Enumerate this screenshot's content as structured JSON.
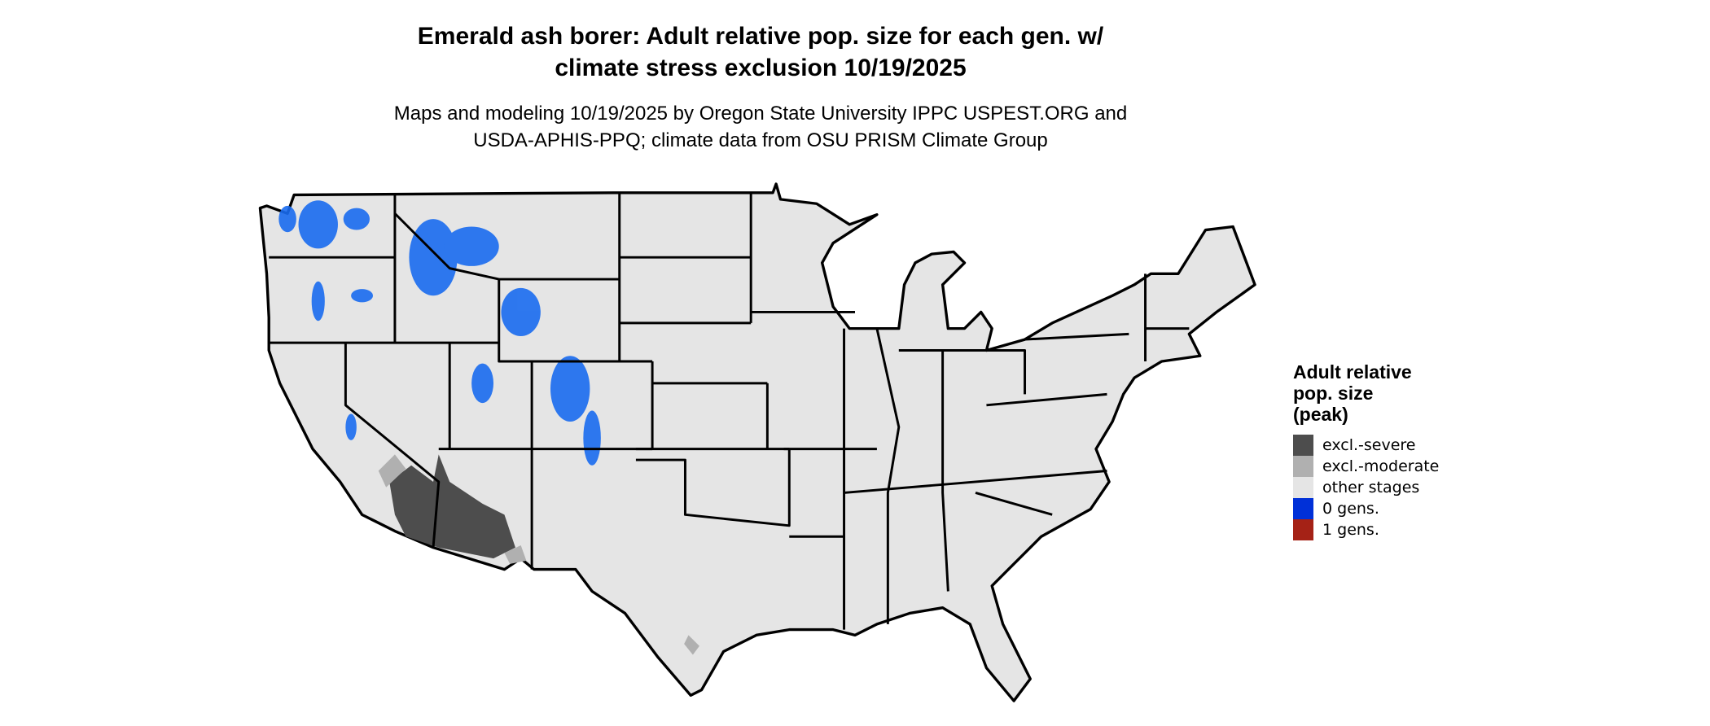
{
  "title": {
    "line1": "Emerald ash borer: Adult relative pop. size for each gen. w/",
    "line2": "climate stress exclusion 10/19/2025"
  },
  "subtitle": {
    "line1": "Maps and modeling 10/19/2025 by Oregon State University IPPC USPEST.ORG and",
    "line2": "USDA-APHIS-PPQ; climate data from OSU PRISM Climate Group"
  },
  "map": {
    "region": "Contiguous United States",
    "background_color": "#e5e5e5",
    "border_color": "#000000"
  },
  "legend": {
    "title_line1": "Adult relative",
    "title_line2": "pop. size",
    "title_line3": "(peak)",
    "items": [
      {
        "label": "excl.-severe",
        "color": "#4d4d4d"
      },
      {
        "label": "excl.-moderate",
        "color": "#b0b0b0"
      },
      {
        "label": "other stages",
        "color": "#e5e5e5"
      },
      {
        "label": "0 gens.",
        "color": "#0030d8"
      },
      {
        "label": "1 gens.",
        "color": "#a52216"
      }
    ]
  }
}
